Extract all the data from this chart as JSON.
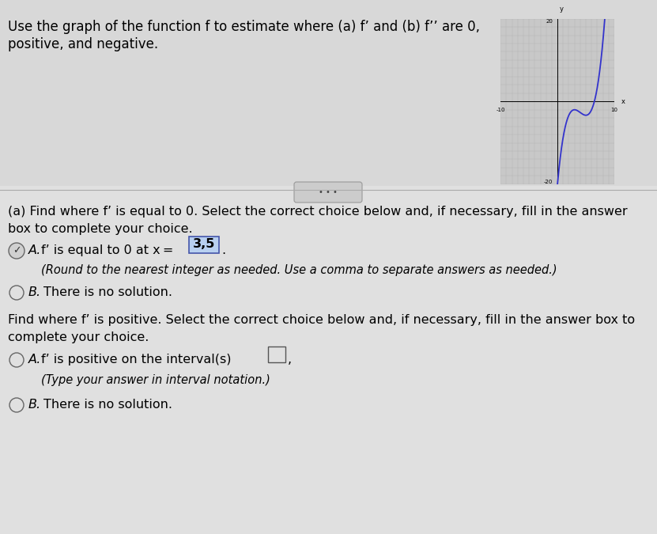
{
  "top_bg_color": "#d8d8d8",
  "bottom_bg_color": "#e0e0e0",
  "title_line1": "Use the graph of the function f to estimate where (a) f’ and (b) f’’ are 0,",
  "title_line2": "positive, and negative.",
  "section_a_line1": "(a) Find where f’ is equal to 0. Select the correct choice below and, if necessary, fill in the answer",
  "section_a_line2": "box to complete your choice.",
  "choice_a1_main": "f’ is equal to 0 at x = ",
  "choice_a1_answer": "3,5",
  "choice_a1_note": "(Round to the nearest integer as needed. Use a comma to separate answers as needed.)",
  "choice_b1_text": "There is no solution.",
  "section_b_line1": "Find where f’ is positive. Select the correct choice below and, if necessary, fill in the answer box to",
  "section_b_line2": "complete your choice.",
  "choice_a2_main": "f’ is positive on the interval(s) ",
  "choice_a2_note": "(Type your answer in interval notation.)",
  "choice_b2_text": "There is no solution.",
  "label_A": "A.",
  "label_B": "B.",
  "graph_color": "#3333cc",
  "grid_color": "#b0b0b0",
  "graph_bg": "#c8c8c8"
}
